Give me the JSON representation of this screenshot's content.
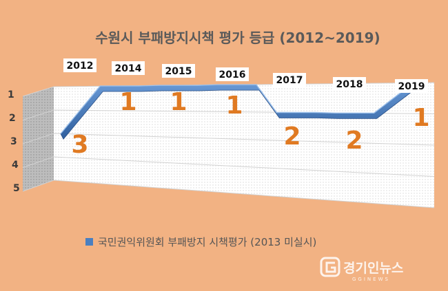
{
  "chart_data": {
    "type": "line",
    "title": "수원시 부패방지시책 평가 등급 (2012~2019)",
    "categories": [
      "2012",
      "2014",
      "2015",
      "2016",
      "2017",
      "2018",
      "2019"
    ],
    "series": [
      {
        "name": "국민권익위원회 부패방지 시책평가 (2013 미실시)",
        "values": [
          3,
          1,
          1,
          1,
          2,
          2,
          1
        ],
        "color": "#4a7fc0"
      }
    ],
    "y_ticks": [
      "1",
      "2",
      "3",
      "4",
      "5"
    ],
    "ylim": [
      1,
      5
    ],
    "y_reversed": true,
    "legend_position": "bottom-center",
    "style": "3d-ribbon"
  },
  "watermark": {
    "name": "경기인뉴스",
    "sub": "GGINEWS"
  }
}
